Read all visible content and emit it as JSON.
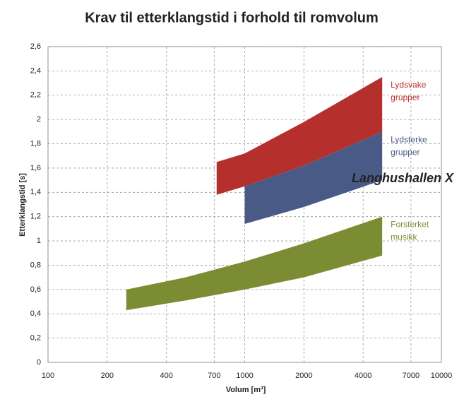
{
  "chart_data": {
    "type": "band",
    "title": "Krav til etterklangstid i forhold til romvolum",
    "x_label": "Volum [m³]",
    "y_label": "Etterklangstid [s]",
    "x_log": true,
    "grid": true,
    "xlim": [
      100,
      10000
    ],
    "xticks": [
      100,
      200,
      400,
      700,
      1000,
      2000,
      4000,
      7000,
      10000
    ],
    "ylim": [
      0,
      2.6
    ],
    "yticks": [
      {
        "value": 0,
        "label": "0"
      },
      {
        "value": 0.2,
        "label": "0,2"
      },
      {
        "value": 0.4,
        "label": "0,4"
      },
      {
        "value": 0.6,
        "label": "0,6"
      },
      {
        "value": 0.8,
        "label": "0,8"
      },
      {
        "value": 1,
        "label": "1"
      },
      {
        "value": 1.2,
        "label": "1,2"
      },
      {
        "value": 1.4,
        "label": "1,4"
      },
      {
        "value": 1.6,
        "label": "1,6"
      },
      {
        "value": 1.8,
        "label": "1,8"
      },
      {
        "value": 2,
        "label": "2"
      },
      {
        "value": 2.2,
        "label": "2,2"
      },
      {
        "value": 2.4,
        "label": "2,4"
      },
      {
        "value": 2.6,
        "label": "2,6"
      }
    ],
    "series": [
      {
        "name": "Lydsvake grupper",
        "color": "#b5302c",
        "x": [
          720,
          1000,
          2000,
          5000
        ],
        "values": [
          1.65,
          1.72,
          1.98,
          2.35
        ],
        "lower": [
          1.38,
          1.45,
          1.62,
          1.9
        ]
      },
      {
        "name": "Lydsterke grupper",
        "color": "#4a5a86",
        "x": [
          1000,
          2000,
          5000
        ],
        "values": [
          1.45,
          1.62,
          1.9
        ],
        "lower": [
          1.14,
          1.28,
          1.5
        ]
      },
      {
        "name": "Forsterket musikk",
        "color": "#7b8c33",
        "x": [
          250,
          500,
          1000,
          2000,
          5000
        ],
        "values": [
          0.6,
          0.7,
          0.83,
          0.98,
          1.2
        ],
        "lower": [
          0.43,
          0.51,
          0.6,
          0.7,
          0.88
        ]
      }
    ],
    "annotation": "Langhushallen X"
  }
}
